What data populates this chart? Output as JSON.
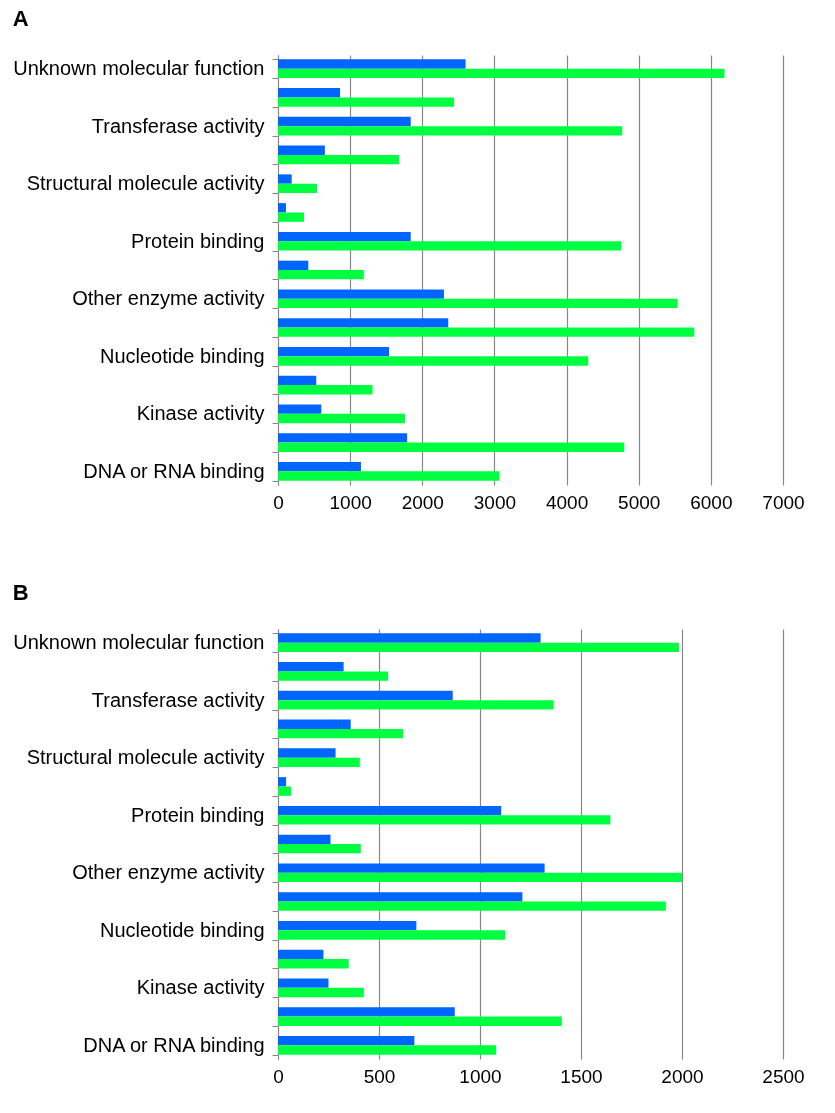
{
  "chart_data": [
    {
      "type": "bar",
      "title": "A",
      "orientation": "horizontal",
      "grid": "x",
      "legend": false,
      "categories": [
        "Unknown molecular function",
        null,
        "Transferase activity",
        null,
        "Structural molecule activity",
        null,
        "Protein binding",
        null,
        "Other enzyme activity",
        null,
        "Nucleotide binding",
        null,
        "Kinase activity",
        null,
        "DNA or RNA binding"
      ],
      "series": [
        {
          "color": "#0066ff",
          "values": [
            2600,
            860,
            1840,
            650,
            190,
            110,
            1840,
            420,
            2300,
            2360,
            1540,
            530,
            600,
            1790,
            1150
          ]
        },
        {
          "color": "#00ff40",
          "values": [
            6190,
            2440,
            4770,
            1680,
            540,
            360,
            4760,
            1190,
            5540,
            5770,
            4300,
            1310,
            1760,
            4800,
            3070
          ]
        }
      ],
      "xlim": [
        0,
        7000
      ],
      "xticks": [
        {
          "value": 0,
          "label": "0"
        },
        {
          "value": 1000,
          "label": "1000"
        },
        {
          "value": 2000,
          "label": "2000"
        },
        {
          "value": 3000,
          "label": "3000"
        },
        {
          "value": 4000,
          "label": "4000"
        },
        {
          "value": 5000,
          "label": "5000"
        },
        {
          "value": 6000,
          "label": "6000"
        },
        {
          "value": 7000,
          "label": "7000"
        }
      ]
    },
    {
      "type": "bar",
      "title": "B",
      "orientation": "horizontal",
      "grid": "x",
      "legend": false,
      "categories": [
        "Unknown molecular function",
        null,
        "Transferase activity",
        null,
        "Structural molecule activity",
        null,
        "Protein binding",
        null,
        "Other enzyme activity",
        null,
        "Nucleotide binding",
        null,
        "Kinase activity",
        null,
        "DNA or RNA binding"
      ],
      "series": [
        {
          "color": "#0066ff",
          "values": [
            1300,
            325,
            865,
            360,
            285,
            40,
            1105,
            260,
            1320,
            1210,
            685,
            225,
            250,
            875,
            675
          ]
        },
        {
          "color": "#00ff40",
          "values": [
            1985,
            545,
            1365,
            620,
            405,
            65,
            1645,
            410,
            2000,
            1920,
            1125,
            350,
            425,
            1405,
            1080
          ]
        }
      ],
      "xlim": [
        0,
        2500
      ],
      "xticks": [
        {
          "value": 0,
          "label": "0"
        },
        {
          "value": 500,
          "label": "500"
        },
        {
          "value": 1000,
          "label": "1000"
        },
        {
          "value": 1500,
          "label": "1500"
        },
        {
          "value": 2000,
          "label": "2000"
        },
        {
          "value": 2500,
          "label": "2500"
        }
      ]
    }
  ]
}
